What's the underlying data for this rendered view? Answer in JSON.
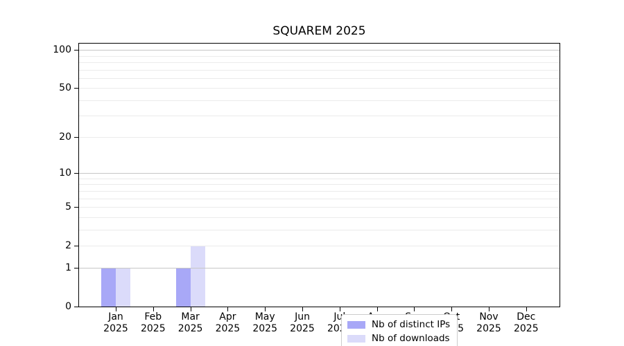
{
  "chart_data": {
    "type": "bar",
    "title": "SQUAREM 2025",
    "categories": [
      "Jan",
      "Feb",
      "Mar",
      "Apr",
      "May",
      "Jun",
      "Jul",
      "Aug",
      "Sep",
      "Oct",
      "Nov",
      "Dec"
    ],
    "category_sublabel": "2025",
    "series": [
      {
        "name": "Nb of distinct IPs",
        "color": "#a8a8f7",
        "values": [
          1,
          0,
          1,
          0,
          0,
          0,
          0,
          0,
          0,
          0,
          0,
          0
        ]
      },
      {
        "name": "Nb of downloads",
        "color": "#dbdbfa",
        "values": [
          1,
          0,
          2,
          0,
          0,
          0,
          0,
          0,
          0,
          0,
          0,
          0
        ]
      }
    ],
    "yaxis": {
      "scale": "log10(value+1)",
      "tick_values": [
        0,
        1,
        2,
        5,
        10,
        20,
        50,
        100
      ],
      "major_gridline_values": [
        1,
        10,
        100
      ],
      "minor_gridline_values": [
        2,
        3,
        4,
        5,
        6,
        7,
        8,
        9,
        20,
        30,
        40,
        50,
        60,
        70,
        80,
        90
      ],
      "ylim": [
        0,
        112
      ]
    },
    "xlabel": "",
    "ylabel": "",
    "legend_position": "inside-bottom-center",
    "colors": {
      "major_grid": "#c6c6c6",
      "minor_grid": "#ebebeb",
      "spine": "#000000",
      "background": "#ffffff"
    }
  }
}
